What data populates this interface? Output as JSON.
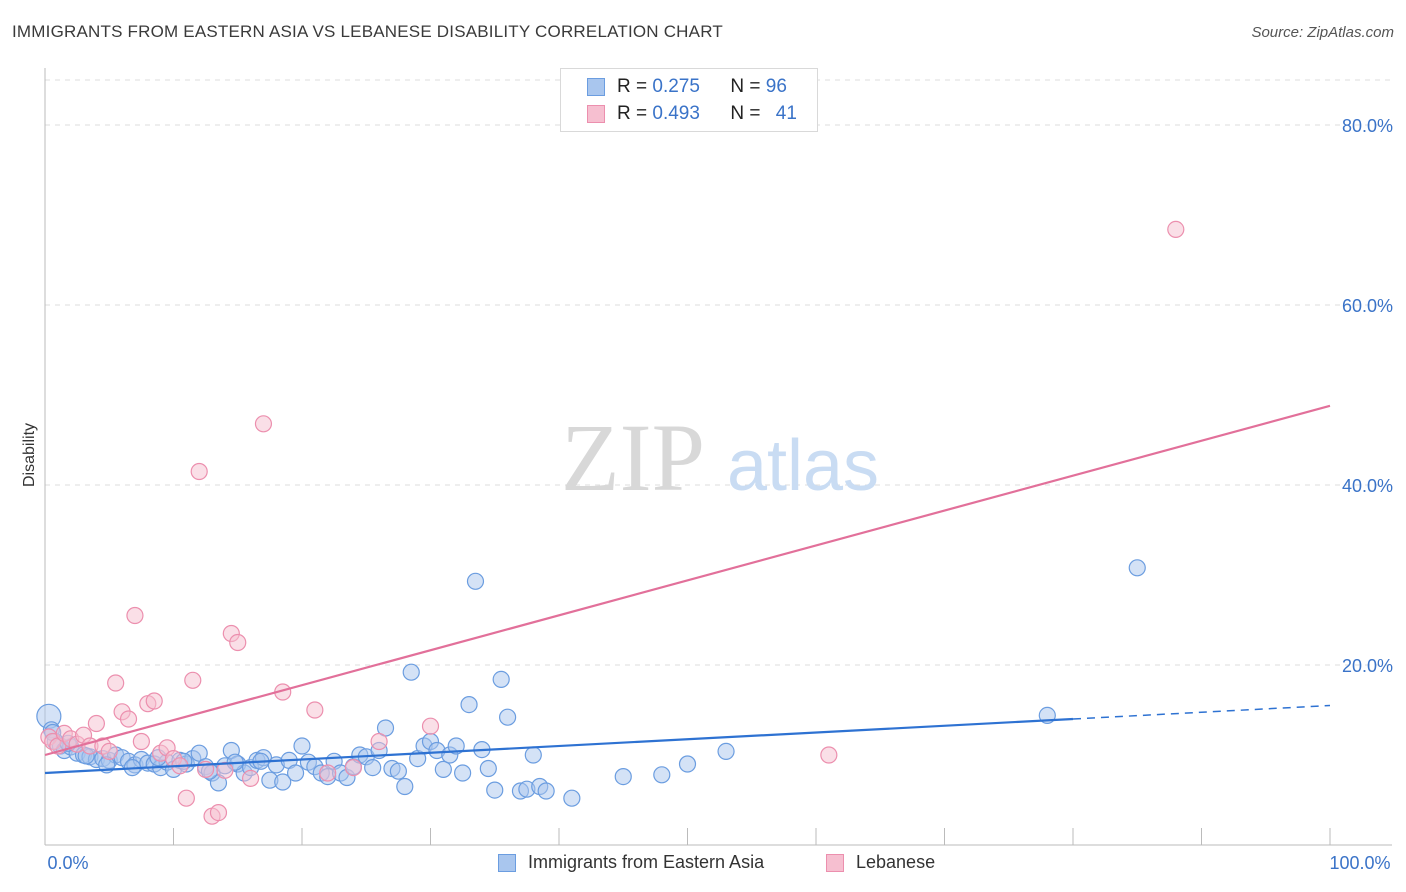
{
  "title": "IMMIGRANTS FROM EASTERN ASIA VS LEBANESE DISABILITY CORRELATION CHART",
  "source": "Source: ZipAtlas.com",
  "watermark": {
    "zip": "ZIP",
    "atlas": "atlas"
  },
  "colors": {
    "blue_fill": "#a9c6ee",
    "blue_stroke": "#6b9de0",
    "blue_line": "#2e72d2",
    "pink_fill": "#f6bfd0",
    "pink_stroke": "#ec8fae",
    "pink_line": "#e2709a",
    "axis_text": "#3a73c8",
    "grid": "#dddddd"
  },
  "legend": {
    "rows": [
      {
        "r_label": "R =",
        "r_value": "0.275",
        "n_label": "N =",
        "n_value": "96"
      },
      {
        "r_label": "R =",
        "r_value": "0.493",
        "n_label": "N =",
        "n_value": "41"
      }
    ]
  },
  "bottom_legend": [
    "Immigrants from Eastern Asia",
    "Lebanese"
  ],
  "chart_data": {
    "type": "scatter",
    "title": "IMMIGRANTS FROM EASTERN ASIA VS LEBANESE DISABILITY CORRELATION CHART",
    "xlabel": "",
    "ylabel": "Disability",
    "xlim": [
      0,
      100
    ],
    "ylim": [
      0,
      85
    ],
    "x_tick_labels": [
      "0.0%",
      "100.0%"
    ],
    "y_ticks": [
      20,
      40,
      60,
      80
    ],
    "y_tick_labels": [
      "20.0%",
      "40.0%",
      "60.0%",
      "80.0%"
    ],
    "grid": true,
    "series": [
      {
        "name": "Immigrants from Eastern Asia",
        "color": "#6b9de0",
        "points": [
          [
            0.3,
            14.3
          ],
          [
            0.5,
            12.8
          ],
          [
            0.8,
            11.5
          ],
          [
            1.2,
            11.0
          ],
          [
            1.5,
            10.5
          ],
          [
            2.0,
            10.9
          ],
          [
            2.5,
            10.2
          ],
          [
            3.0,
            10.0
          ],
          [
            3.5,
            9.8
          ],
          [
            4.0,
            9.5
          ],
          [
            4.5,
            9.6
          ],
          [
            5.0,
            9.4
          ],
          [
            5.5,
            10.0
          ],
          [
            6.0,
            9.7
          ],
          [
            6.5,
            9.3
          ],
          [
            7.0,
            8.9
          ],
          [
            7.5,
            9.5
          ],
          [
            8.0,
            9.1
          ],
          [
            8.5,
            9.0
          ],
          [
            9.0,
            8.6
          ],
          [
            9.5,
            9.2
          ],
          [
            10.0,
            8.4
          ],
          [
            10.5,
            9.4
          ],
          [
            11.0,
            9.0
          ],
          [
            11.5,
            9.6
          ],
          [
            12.0,
            10.2
          ],
          [
            12.5,
            8.7
          ],
          [
            13.0,
            8.0
          ],
          [
            13.5,
            6.9
          ],
          [
            14.0,
            8.8
          ],
          [
            14.5,
            10.5
          ],
          [
            15.0,
            9.0
          ],
          [
            15.5,
            8.0
          ],
          [
            16.0,
            8.6
          ],
          [
            16.5,
            9.4
          ],
          [
            17.0,
            9.7
          ],
          [
            17.5,
            7.2
          ],
          [
            18.0,
            8.9
          ],
          [
            18.5,
            7.0
          ],
          [
            19.0,
            9.4
          ],
          [
            19.5,
            8.0
          ],
          [
            20.0,
            11.0
          ],
          [
            20.5,
            9.2
          ],
          [
            21.0,
            8.7
          ],
          [
            21.5,
            8.0
          ],
          [
            22.0,
            7.6
          ],
          [
            22.5,
            9.3
          ],
          [
            23.0,
            8.0
          ],
          [
            23.5,
            7.5
          ],
          [
            24.0,
            8.7
          ],
          [
            24.5,
            10.0
          ],
          [
            25.0,
            9.8
          ],
          [
            25.5,
            8.6
          ],
          [
            26.0,
            10.5
          ],
          [
            26.5,
            13.0
          ],
          [
            27.0,
            8.5
          ],
          [
            27.5,
            8.2
          ],
          [
            28.0,
            6.5
          ],
          [
            28.5,
            19.2
          ],
          [
            29.0,
            9.6
          ],
          [
            29.5,
            11.0
          ],
          [
            30.0,
            11.5
          ],
          [
            30.5,
            10.5
          ],
          [
            31.0,
            8.4
          ],
          [
            31.5,
            10.0
          ],
          [
            32.0,
            11.0
          ],
          [
            32.5,
            8.0
          ],
          [
            33.0,
            15.6
          ],
          [
            33.5,
            29.3
          ],
          [
            34.0,
            10.6
          ],
          [
            34.5,
            8.5
          ],
          [
            35.0,
            6.1
          ],
          [
            35.5,
            18.4
          ],
          [
            36.0,
            14.2
          ],
          [
            37.0,
            6.0
          ],
          [
            37.5,
            6.2
          ],
          [
            38.0,
            10.0
          ],
          [
            38.5,
            6.5
          ],
          [
            39.0,
            6.0
          ],
          [
            41.0,
            5.2
          ],
          [
            45.0,
            7.6
          ],
          [
            48.0,
            7.8
          ],
          [
            50.0,
            9.0
          ],
          [
            53.0,
            10.4
          ],
          [
            78.0,
            14.4
          ],
          [
            0.6,
            12.5
          ],
          [
            1.8,
            11.3
          ],
          [
            3.2,
            9.9
          ],
          [
            4.8,
            8.9
          ],
          [
            6.8,
            8.6
          ],
          [
            8.8,
            9.7
          ],
          [
            10.8,
            9.3
          ],
          [
            12.8,
            8.2
          ],
          [
            14.8,
            9.2
          ],
          [
            16.8,
            9.3
          ],
          [
            85.0,
            30.8
          ]
        ]
      },
      {
        "name": "Lebanese",
        "color": "#ec8fae",
        "points": [
          [
            0.3,
            12.0
          ],
          [
            0.6,
            11.5
          ],
          [
            1.0,
            11.0
          ],
          [
            1.5,
            12.4
          ],
          [
            2.0,
            11.8
          ],
          [
            2.5,
            11.2
          ],
          [
            3.0,
            12.2
          ],
          [
            3.5,
            11.0
          ],
          [
            4.0,
            13.5
          ],
          [
            4.5,
            11.0
          ],
          [
            5.0,
            10.4
          ],
          [
            5.5,
            18.0
          ],
          [
            6.0,
            14.8
          ],
          [
            6.5,
            14.0
          ],
          [
            7.0,
            25.5
          ],
          [
            7.5,
            11.5
          ],
          [
            8.0,
            15.7
          ],
          [
            8.5,
            16.0
          ],
          [
            9.0,
            10.2
          ],
          [
            9.5,
            10.8
          ],
          [
            10.0,
            9.6
          ],
          [
            10.5,
            8.8
          ],
          [
            11.0,
            5.2
          ],
          [
            11.5,
            18.3
          ],
          [
            12.0,
            41.5
          ],
          [
            12.5,
            8.4
          ],
          [
            13.0,
            3.2
          ],
          [
            13.5,
            3.6
          ],
          [
            14.0,
            8.3
          ],
          [
            14.5,
            23.5
          ],
          [
            15.0,
            22.5
          ],
          [
            16.0,
            7.4
          ],
          [
            17.0,
            46.8
          ],
          [
            18.5,
            17.0
          ],
          [
            21.0,
            15.0
          ],
          [
            22.0,
            8.0
          ],
          [
            24.0,
            8.6
          ],
          [
            26.0,
            11.5
          ],
          [
            30.0,
            13.2
          ],
          [
            61.0,
            10.0
          ],
          [
            88.0,
            68.4
          ]
        ]
      }
    ],
    "trend_lines": [
      {
        "series": "Immigrants from Eastern Asia",
        "x": [
          0,
          100
        ],
        "y": [
          8.0,
          15.5
        ],
        "solid_until_x": 80
      },
      {
        "series": "Lebanese",
        "x": [
          0,
          100
        ],
        "y": [
          10.0,
          48.8
        ]
      }
    ]
  }
}
